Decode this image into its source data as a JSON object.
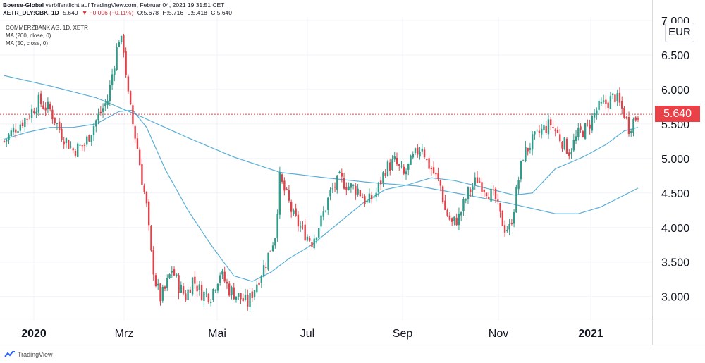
{
  "header": {
    "line1_pub": "Boerse-Global",
    "line1_text": " veröffentlicht auf TradingView.com, Februar 04, 2021 19:31:51 CET",
    "symbol": "XETR_DLY:CBK, 1D",
    "price": "5.640",
    "change": "▼ −0.006 (−0.11%)",
    "o": "O:5.678",
    "h": "H:5.716",
    "l": "L:5.418",
    "c": "C:5.640"
  },
  "legend": {
    "title": "COMMERZBANK AG, 1D, XETR",
    "ma200": "MA (200, close, 0)",
    "ma50": "MA (50, close, 0)"
  },
  "currency": "EUR",
  "current_price_label": "5.640",
  "footer": {
    "brand": "TradingView"
  },
  "colors": {
    "up": "#2e9c8a",
    "down": "#e0424a",
    "ma": "#5aaed6",
    "price_line": "#e84147"
  },
  "chart_data": {
    "type": "candlestick",
    "title": "COMMERZBANK AG, 1D, XETR",
    "currency": "EUR",
    "x_ticks": [
      "2020",
      "Mrz",
      "Mai",
      "Jul",
      "Sep",
      "Nov",
      "2021"
    ],
    "y_ticks": [
      3.0,
      3.5,
      4.0,
      4.5,
      5.0,
      5.5,
      6.0,
      6.5,
      7.0
    ],
    "y_tick_labels": [
      "3.000",
      "3.500",
      "4.000",
      "4.500",
      "5.000",
      "5.500",
      "6.000",
      "6.500",
      "7.000"
    ],
    "ylim": [
      2.65,
      7.05
    ],
    "current_price": 5.64,
    "close_path": [
      [
        0,
        5.25
      ],
      [
        5,
        5.45
      ],
      [
        10,
        5.6
      ],
      [
        15,
        5.82
      ],
      [
        20,
        5.7
      ],
      [
        25,
        5.35
      ],
      [
        30,
        5.12
      ],
      [
        35,
        5.2
      ],
      [
        40,
        5.55
      ],
      [
        45,
        5.85
      ],
      [
        48,
        6.4
      ],
      [
        50,
        6.75
      ],
      [
        52,
        6.6
      ],
      [
        54,
        5.9
      ],
      [
        56,
        5.5
      ],
      [
        58,
        5.15
      ],
      [
        60,
        4.7
      ],
      [
        62,
        4.3
      ],
      [
        64,
        3.6
      ],
      [
        66,
        3.2
      ],
      [
        68,
        2.98
      ],
      [
        70,
        3.1
      ],
      [
        73,
        3.4
      ],
      [
        76,
        3.15
      ],
      [
        79,
        3.0
      ],
      [
        82,
        3.25
      ],
      [
        86,
        3.05
      ],
      [
        90,
        3.02
      ],
      [
        94,
        3.35
      ],
      [
        98,
        3.1
      ],
      [
        102,
        3.0
      ],
      [
        106,
        2.9
      ],
      [
        110,
        3.2
      ],
      [
        114,
        3.5
      ],
      [
        118,
        3.9
      ],
      [
        120,
        4.7
      ],
      [
        123,
        4.45
      ],
      [
        126,
        4.15
      ],
      [
        130,
        3.95
      ],
      [
        134,
        3.8
      ],
      [
        138,
        4.1
      ],
      [
        142,
        4.5
      ],
      [
        146,
        4.7
      ],
      [
        150,
        4.6
      ],
      [
        154,
        4.55
      ],
      [
        158,
        4.35
      ],
      [
        162,
        4.5
      ],
      [
        166,
        4.85
      ],
      [
        170,
        4.95
      ],
      [
        174,
        4.75
      ],
      [
        178,
        5.0
      ],
      [
        182,
        5.2
      ],
      [
        184,
        4.95
      ],
      [
        186,
        4.85
      ],
      [
        190,
        4.6
      ],
      [
        192,
        4.25
      ],
      [
        195,
        4.05
      ],
      [
        198,
        4.15
      ],
      [
        202,
        4.5
      ],
      [
        206,
        4.7
      ],
      [
        210,
        4.55
      ],
      [
        214,
        4.4
      ],
      [
        216,
        4.15
      ],
      [
        218,
        4.0
      ],
      [
        220,
        3.98
      ],
      [
        222,
        4.3
      ],
      [
        224,
        4.7
      ],
      [
        226,
        5.05
      ],
      [
        230,
        5.25
      ],
      [
        234,
        5.4
      ],
      [
        238,
        5.5
      ],
      [
        242,
        5.3
      ],
      [
        246,
        5.1
      ],
      [
        250,
        5.35
      ],
      [
        254,
        5.45
      ],
      [
        258,
        5.7
      ],
      [
        262,
        5.8
      ],
      [
        266,
        5.9
      ],
      [
        270,
        5.65
      ],
      [
        272,
        5.45
      ],
      [
        274,
        5.55
      ],
      [
        276,
        5.64
      ]
    ],
    "ma200": [
      [
        0,
        6.2
      ],
      [
        20,
        6.05
      ],
      [
        40,
        5.88
      ],
      [
        60,
        5.6
      ],
      [
        80,
        5.3
      ],
      [
        100,
        5.02
      ],
      [
        120,
        4.8
      ],
      [
        140,
        4.72
      ],
      [
        160,
        4.65
      ],
      [
        180,
        4.6
      ],
      [
        200,
        4.48
      ],
      [
        220,
        4.35
      ],
      [
        240,
        4.2
      ],
      [
        250,
        4.2
      ],
      [
        260,
        4.3
      ],
      [
        276,
        4.57
      ]
    ],
    "ma50": [
      [
        0,
        5.28
      ],
      [
        10,
        5.38
      ],
      [
        20,
        5.45
      ],
      [
        30,
        5.45
      ],
      [
        40,
        5.5
      ],
      [
        50,
        5.68
      ],
      [
        56,
        5.7
      ],
      [
        62,
        5.45
      ],
      [
        70,
        4.85
      ],
      [
        80,
        4.25
      ],
      [
        90,
        3.75
      ],
      [
        100,
        3.3
      ],
      [
        108,
        3.22
      ],
      [
        116,
        3.35
      ],
      [
        124,
        3.55
      ],
      [
        134,
        3.75
      ],
      [
        144,
        4.02
      ],
      [
        156,
        4.35
      ],
      [
        166,
        4.55
      ],
      [
        176,
        4.62
      ],
      [
        186,
        4.72
      ],
      [
        196,
        4.68
      ],
      [
        206,
        4.6
      ],
      [
        216,
        4.52
      ],
      [
        222,
        4.47
      ],
      [
        230,
        4.5
      ],
      [
        240,
        4.85
      ],
      [
        252,
        5.02
      ],
      [
        262,
        5.2
      ],
      [
        270,
        5.4
      ],
      [
        276,
        5.45
      ]
    ],
    "n_days": 277
  }
}
